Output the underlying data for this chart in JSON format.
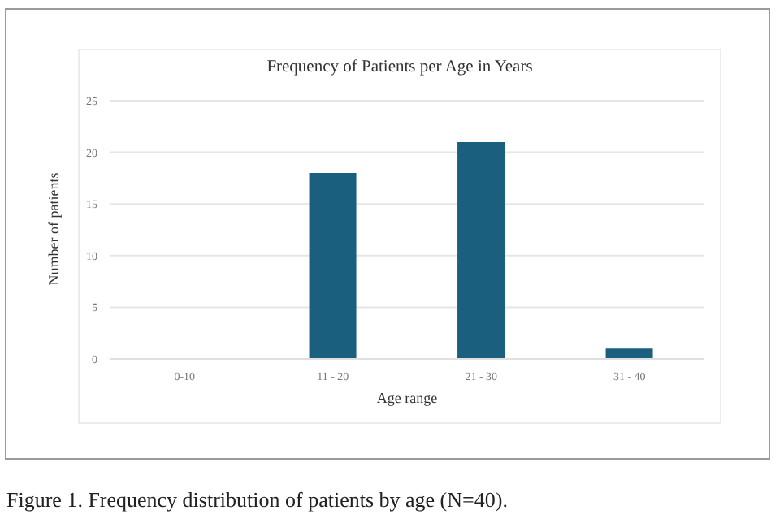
{
  "chart_data": {
    "type": "bar",
    "title": "Frequency of Patients per Age in Years",
    "xlabel": "Age range",
    "ylabel": "Number of patients",
    "categories": [
      "0-10",
      "11 - 20",
      "21 - 30",
      "31 - 40"
    ],
    "values": [
      0,
      18,
      21,
      1
    ],
    "color": "#1b5f7e",
    "ylim": [
      0,
      25
    ],
    "yticks": [
      0,
      5,
      10,
      15,
      20,
      25
    ],
    "grid": "y",
    "annotations": [
      "Figure 1. Frequency distribution of patients by age (N=40)."
    ]
  }
}
